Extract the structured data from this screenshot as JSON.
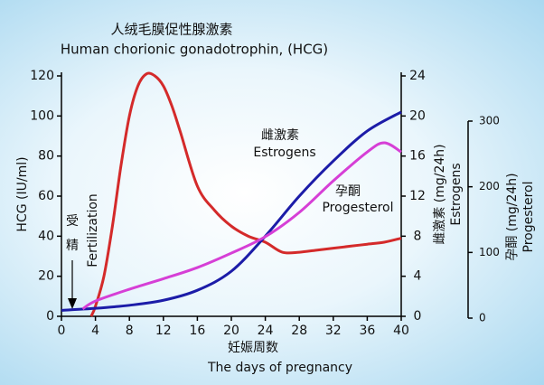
{
  "chart_data": {
    "type": "line",
    "title": "人绒毛膜促性腺激素",
    "subtitle": "Human chorionic gonadotrophin, (HCG)",
    "x_label_cn": "妊娠周数",
    "x_label": "The days of pregnancy",
    "y_label": "HCG (IU/ml)",
    "y2_label_cn": "雌激素 (mg/24h)",
    "y2_label": "Estrogens",
    "y3_label_cn": "孕酮 (mg/24h)",
    "y3_label": "Progesterol",
    "xlim": [
      0,
      40
    ],
    "xticks": [
      0,
      4,
      8,
      12,
      16,
      20,
      24,
      28,
      32,
      36,
      40
    ],
    "ylim": [
      0,
      120
    ],
    "yticks": [
      0,
      20,
      40,
      60,
      80,
      100,
      120
    ],
    "y2lim": [
      0,
      24
    ],
    "y2ticks": [
      0,
      4,
      8,
      12,
      16,
      20,
      24
    ],
    "y3lim": [
      0,
      300
    ],
    "y3ticks": [
      0,
      100,
      200,
      300
    ],
    "annotations": {
      "fertilization_cn": [
        "受",
        "精"
      ],
      "fertilization": "Fertilization",
      "estrogens_cn": "雌激素",
      "estrogens": "Estrogens",
      "progesterone_cn": "孕酮",
      "progesterone": "Progesterol"
    },
    "series": [
      {
        "name": "HCG",
        "color": "#d42a2a",
        "axis": "y",
        "x": [
          3.5,
          4,
          5,
          6,
          7,
          8,
          9,
          10,
          11,
          12,
          13,
          14,
          16,
          18,
          20,
          22,
          24,
          26,
          28,
          30,
          32,
          34,
          36,
          38,
          40
        ],
        "values": [
          0,
          5,
          20,
          45,
          75,
          100,
          115,
          121,
          120,
          115,
          105,
          92,
          65,
          53,
          45,
          40,
          37,
          32,
          32,
          33,
          34,
          35,
          36,
          37,
          39
        ]
      },
      {
        "name": "Estrogens",
        "color": "#1c1ca8",
        "axis": "y2",
        "x": [
          0,
          4,
          8,
          12,
          16,
          20,
          24,
          28,
          32,
          36,
          40
        ],
        "values": [
          0.6,
          0.8,
          1.1,
          1.6,
          2.6,
          4.5,
          8,
          12,
          15.5,
          18.5,
          20.4
        ]
      },
      {
        "name": "Progesterol",
        "color": "#d63fd6",
        "axis": "y3",
        "x": [
          2.5,
          4,
          8,
          12,
          16,
          20,
          24,
          28,
          32,
          36,
          38,
          40
        ],
        "values": [
          14,
          26,
          44,
          60,
          77,
          99,
          124,
          161,
          209,
          253,
          267,
          253
        ]
      }
    ]
  }
}
